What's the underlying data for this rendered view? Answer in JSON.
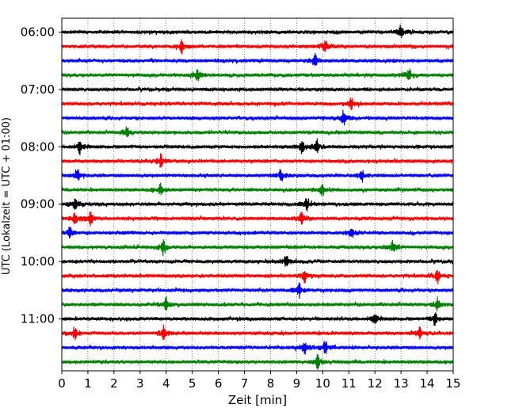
{
  "chart_data": {
    "type": "line",
    "title": "",
    "xlabel": "Zeit  [min]",
    "ylabel": "UTC (Lokalzeit = UTC + 01:00)",
    "xlim": [
      0,
      15
    ],
    "x_ticks": [
      0,
      1,
      2,
      3,
      4,
      5,
      6,
      7,
      8,
      9,
      10,
      11,
      12,
      13,
      14,
      15
    ],
    "x_grid": "dotted vertical lines at each minute",
    "y_ticks": [
      "06:00",
      "07:00",
      "08:00",
      "09:00",
      "10:00",
      "11:00"
    ],
    "trace_start": "06:00",
    "trace_interval_min": 15,
    "trace_count": 24,
    "trace_colors": [
      "#000000",
      "#ff0000",
      "#0000ff",
      "#008000"
    ],
    "series": [
      {
        "start": "06:00",
        "color": "#000000",
        "events_min": [
          13.0
        ]
      },
      {
        "start": "06:15",
        "color": "#ff0000",
        "events_min": [
          4.6,
          10.1
        ]
      },
      {
        "start": "06:30",
        "color": "#0000ff",
        "events_min": [
          9.7
        ]
      },
      {
        "start": "06:45",
        "color": "#008000",
        "events_min": [
          5.2,
          13.3
        ]
      },
      {
        "start": "07:00",
        "color": "#000000",
        "events_min": []
      },
      {
        "start": "07:15",
        "color": "#ff0000",
        "events_min": [
          11.1
        ]
      },
      {
        "start": "07:30",
        "color": "#0000ff",
        "events_min": [
          10.8
        ]
      },
      {
        "start": "07:45",
        "color": "#008000",
        "events_min": [
          2.5
        ]
      },
      {
        "start": "08:00",
        "color": "#000000",
        "events_min": [
          0.7,
          9.2,
          9.8
        ]
      },
      {
        "start": "08:15",
        "color": "#ff0000",
        "events_min": [
          3.8
        ]
      },
      {
        "start": "08:30",
        "color": "#0000ff",
        "events_min": [
          0.6,
          8.4,
          11.5
        ]
      },
      {
        "start": "08:45",
        "color": "#008000",
        "events_min": [
          3.8,
          10.0
        ]
      },
      {
        "start": "09:00",
        "color": "#000000",
        "events_min": [
          0.5,
          9.4
        ]
      },
      {
        "start": "09:15",
        "color": "#ff0000",
        "events_min": [
          0.5,
          1.1,
          9.2
        ]
      },
      {
        "start": "09:30",
        "color": "#0000ff",
        "events_min": [
          0.3,
          11.1
        ]
      },
      {
        "start": "09:45",
        "color": "#008000",
        "events_min": [
          3.9,
          12.7
        ]
      },
      {
        "start": "10:00",
        "color": "#000000",
        "events_min": [
          8.6
        ]
      },
      {
        "start": "10:15",
        "color": "#ff0000",
        "events_min": [
          9.3,
          14.4
        ]
      },
      {
        "start": "10:30",
        "color": "#0000ff",
        "events_min": [
          9.1
        ]
      },
      {
        "start": "10:45",
        "color": "#008000",
        "events_min": [
          4.0,
          14.4
        ]
      },
      {
        "start": "11:00",
        "color": "#000000",
        "events_min": [
          12.0,
          14.3
        ]
      },
      {
        "start": "11:15",
        "color": "#ff0000",
        "events_min": [
          0.5,
          3.9,
          13.7
        ]
      },
      {
        "start": "11:30",
        "color": "#0000ff",
        "events_min": [
          9.3,
          10.1
        ]
      },
      {
        "start": "11:45",
        "color": "#008000",
        "events_min": [
          9.8
        ]
      }
    ]
  }
}
